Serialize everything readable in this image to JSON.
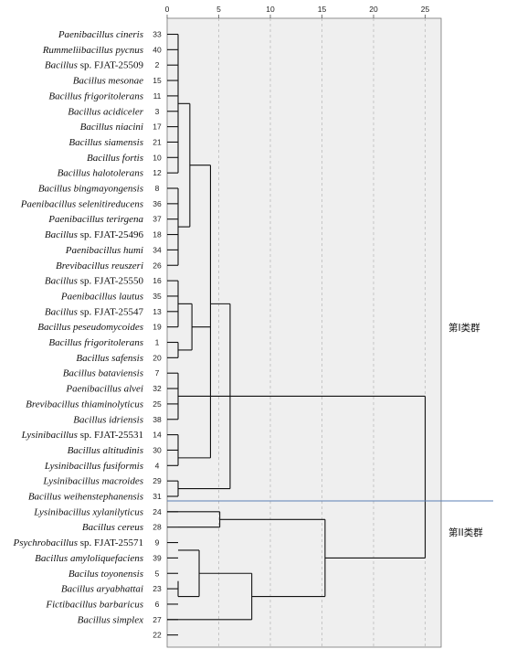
{
  "chart_data": {
    "type": "dendrogram",
    "x_ticks": [
      0,
      5,
      10,
      15,
      20,
      25
    ],
    "xlim": [
      0,
      25
    ],
    "grid": true,
    "leaves": [
      {
        "id": "33",
        "name": "Paenibacillus cineris"
      },
      {
        "id": "40",
        "name": "Rummeliibacillus pycnus"
      },
      {
        "id": "2",
        "name": "Bacillus sp. FJAT-25509",
        "plain": " FJAT-25509",
        "italic": "Bacillus sp."
      },
      {
        "id": "15",
        "name": "Bacillus mesonae"
      },
      {
        "id": "11",
        "name": "Bacillus frigoritolerans"
      },
      {
        "id": "3",
        "name": "Bacillus acidiceler"
      },
      {
        "id": "17",
        "name": "Bacillus niacini"
      },
      {
        "id": "21",
        "name": "Bacillus siamensis"
      },
      {
        "id": "10",
        "name": "Bacillus fortis"
      },
      {
        "id": "12",
        "name": "Bacillus halotolerans"
      },
      {
        "id": "8",
        "name": "Bacillus bingmayongensis"
      },
      {
        "id": "36",
        "name": "Paenibacillus selenitireducens"
      },
      {
        "id": "37",
        "name": "Paenibacillus terirgena"
      },
      {
        "id": "18",
        "name": "Bacillus sp. FJAT-25496",
        "plain": " FJAT-25496",
        "italic": "Bacillus sp."
      },
      {
        "id": "34",
        "name": "Paenibacillus humi"
      },
      {
        "id": "26",
        "name": "Brevibacillus reuszeri"
      },
      {
        "id": "16",
        "name": "Bacillus sp. FJAT-25550",
        "plain": " FJAT-25550",
        "italic": "Bacillus sp."
      },
      {
        "id": "35",
        "name": "Paenibacillus lautus"
      },
      {
        "id": "13",
        "name": "Bacillus sp. FJAT-25547",
        "plain": " FJAT-25547",
        "italic": "Bacillus sp."
      },
      {
        "id": "19",
        "name": "Bacillus peseudomycoides"
      },
      {
        "id": "1",
        "name": "Bacillus frigoritolerans"
      },
      {
        "id": "20",
        "name": "Bacillus safensis"
      },
      {
        "id": "7",
        "name": "Bacillus bataviensis"
      },
      {
        "id": "32",
        "name": "Paenibacillus alvei"
      },
      {
        "id": "25",
        "name": "Brevibacillus thiaminolyticus"
      },
      {
        "id": "38",
        "name": "Bacillus idriensis"
      },
      {
        "id": "14",
        "name": "Lysinibacillus sp. FJAT-25531",
        "plain": " FJAT-25531",
        "italic": "Lysinibacillus sp."
      },
      {
        "id": "30",
        "name": "Bacillus altitudinis"
      },
      {
        "id": "4",
        "name": "Lysinibacillus fusiformis"
      },
      {
        "id": "29",
        "name": "Lysinibacillus macroides"
      },
      {
        "id": "31",
        "name": "Bacillus weihenstephanensis"
      },
      {
        "id": "24",
        "name": "Lysinibacillus xylanilyticus"
      },
      {
        "id": "28",
        "name": "Bacillus cereus"
      },
      {
        "id": "9",
        "name": "Psychrobacillus sp. FJAT-25571",
        "plain": " FJAT-25571",
        "italic": "Psychrobacillus sp."
      },
      {
        "id": "39",
        "name": "Bacillus amyloliquefaciens"
      },
      {
        "id": "5",
        "name": "Bacilus toyonensis"
      },
      {
        "id": "23",
        "name": "Bacillus aryabhattai"
      },
      {
        "id": "6",
        "name": "Fictibacillus barbaricus"
      },
      {
        "id": "27",
        "name": "Bacillus simplex"
      },
      {
        "id": "22",
        "name": ""
      }
    ],
    "merges": [
      {
        "members": [
          "0-9"
        ],
        "height": 1.0
      },
      {
        "members": [
          "10-15"
        ],
        "height": 1.0
      },
      {
        "members": [
          "16-19"
        ],
        "height": 1.0
      },
      {
        "members": [
          "20-21"
        ],
        "height": 1.0
      },
      {
        "members": [
          "22-25"
        ],
        "height": 1.0
      },
      {
        "members": [
          "26-28"
        ],
        "height": 1.0
      },
      {
        "members": [
          "29-30"
        ],
        "height": 1.0
      },
      {
        "members": [
          "33-34"
        ],
        "height": 1.0
      },
      {
        "members": [
          "35-36"
        ],
        "height": 1.0
      },
      {
        "members": [
          "37-38"
        ],
        "height": 1.0
      }
    ]
  },
  "groups": [
    "第I类群",
    "第II类群"
  ]
}
